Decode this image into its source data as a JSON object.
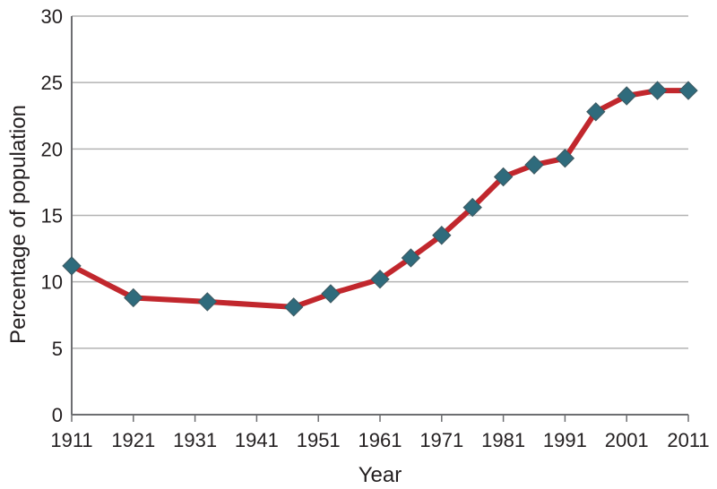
{
  "chart_data": {
    "type": "line",
    "title": "",
    "xlabel": "Year",
    "ylabel": "Percentage of population",
    "xlim": [
      1911,
      2011
    ],
    "ylim": [
      0,
      30
    ],
    "x_ticks": [
      1911,
      1921,
      1931,
      1941,
      1951,
      1961,
      1971,
      1981,
      1991,
      2001,
      2011
    ],
    "y_ticks": [
      0,
      5,
      10,
      15,
      20,
      25,
      30
    ],
    "grid": "horizontal",
    "legend": "none",
    "series": [
      {
        "x": [
          1911,
          1921,
          1933,
          1947,
          1953,
          1961,
          1966,
          1971,
          1976,
          1981,
          1986,
          1991,
          1996,
          2001,
          2006,
          2011
        ],
        "y": [
          11.2,
          8.8,
          8.5,
          8.1,
          9.1,
          10.2,
          11.8,
          13.5,
          15.6,
          17.9,
          18.8,
          19.3,
          22.8,
          24.0,
          24.4,
          24.4
        ]
      }
    ],
    "colors": {
      "line": "#c1272d",
      "marker": "#2f6b7c",
      "grid": "#b3b3b3",
      "axis": "#6d6e71",
      "text": "#231f20"
    }
  }
}
